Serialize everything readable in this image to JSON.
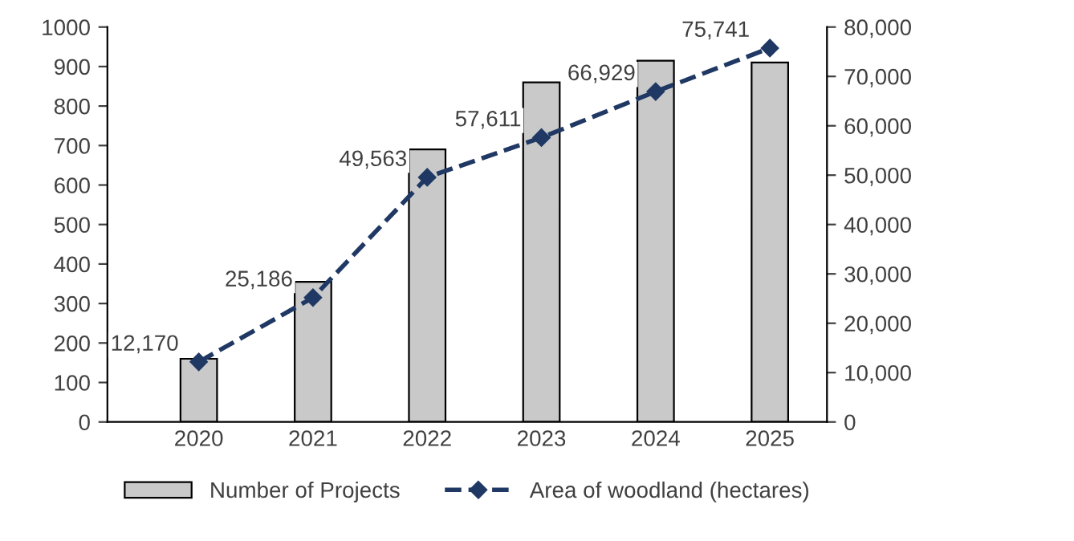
{
  "chart_data": {
    "type": "bar",
    "categories": [
      "2020",
      "2021",
      "2022",
      "2023",
      "2024",
      "2025"
    ],
    "series": [
      {
        "name": "Number of Projects",
        "color": "#c9c9c9",
        "values": [
          160,
          355,
          690,
          860,
          915,
          910
        ]
      },
      {
        "name": "Area of woodland (hectares)",
        "type": "line",
        "axis": "y2",
        "color": "#203864",
        "marker": "diamond",
        "line_style": "dashed",
        "values": [
          12170,
          25186,
          49563,
          57611,
          66929,
          75741
        ],
        "value_labels": [
          "12,170",
          "25,186",
          "49,563",
          "57,611",
          "66,929",
          "75,741"
        ]
      }
    ],
    "ylim": [
      0,
      1000
    ],
    "yticks": [
      0,
      100,
      200,
      300,
      400,
      500,
      600,
      700,
      800,
      900,
      1000
    ],
    "y2lim": [
      0,
      80000
    ],
    "y2ticks": [
      0,
      {
        "value": 10000,
        "label": "10,000"
      },
      {
        "value": 20000,
        "label": "20,000"
      },
      {
        "value": 30000,
        "label": "30,000"
      },
      {
        "value": 40000,
        "label": "40,000"
      },
      {
        "value": 50000,
        "label": "50,000"
      },
      {
        "value": 60000,
        "label": "60,000"
      },
      {
        "value": 70000,
        "label": "70,000"
      },
      {
        "value": 80000,
        "label": "80,000"
      }
    ],
    "grid": false,
    "legend": "bottom"
  }
}
